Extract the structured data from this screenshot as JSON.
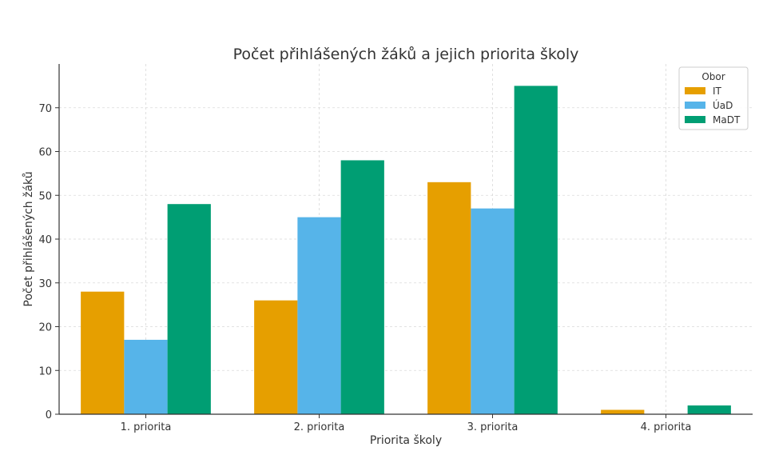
{
  "chart_data": {
    "type": "bar",
    "title": "Počet přihlášených žáků a jejich priorita školy",
    "xlabel": "Priorita školy",
    "ylabel": "Počet přihlášených žáků",
    "categories": [
      "1. priorita",
      "2. priorita",
      "3. priorita",
      "4. priorita"
    ],
    "series": [
      {
        "name": "IT",
        "values": [
          28,
          26,
          53,
          1
        ],
        "color": "#E69F00"
      },
      {
        "name": "ÚaD",
        "values": [
          17,
          45,
          47,
          0
        ],
        "color": "#56B4E9"
      },
      {
        "name": "MaDT",
        "values": [
          48,
          58,
          75,
          2
        ],
        "color": "#009E73"
      }
    ],
    "ylim": [
      0,
      80
    ],
    "yticks": [
      0,
      10,
      20,
      30,
      40,
      50,
      60,
      70
    ],
    "grid": true,
    "legend": {
      "title": "Obor",
      "position": "top-right"
    }
  }
}
